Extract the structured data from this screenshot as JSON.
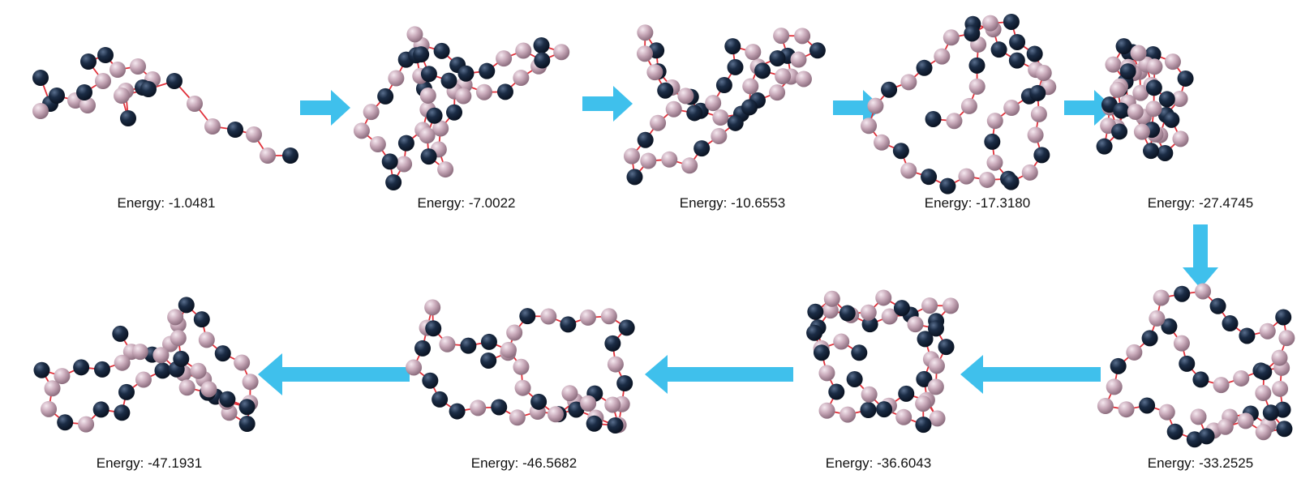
{
  "colors": {
    "bead_dark": "#1b2c45",
    "bead_light": "#c8a9b9",
    "bond": "#e0303a",
    "arrow": "#3fc0ec",
    "text": "#111111"
  },
  "steps": [
    {
      "label": "Energy: -1.0481"
    },
    {
      "label": "Energy: -7.0022"
    },
    {
      "label": "Energy: -10.6553"
    },
    {
      "label": "Energy: -17.3180"
    },
    {
      "label": "Energy: -27.4745"
    },
    {
      "label": "Energy: -33.2525"
    },
    {
      "label": "Energy: -36.6043"
    },
    {
      "label": "Energy: -46.5682"
    },
    {
      "label": "Energy: -47.1931"
    }
  ]
}
